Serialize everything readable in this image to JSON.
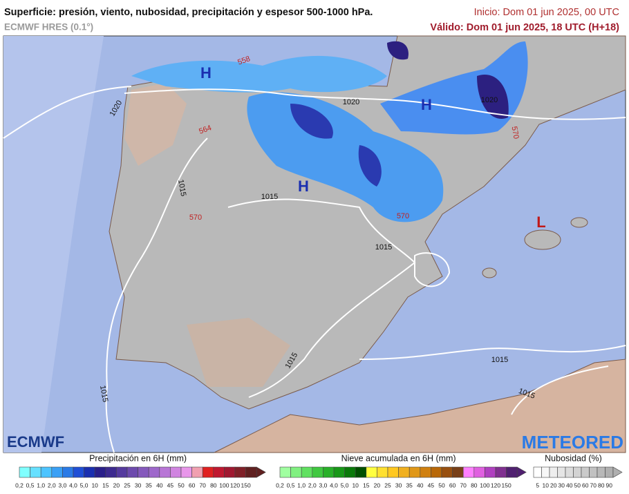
{
  "header": {
    "title": "Superficie: presión, viento, nubosidad, precipitación y espesor 500-1000 hPa.",
    "model": "ECMWF HRES (0.1°)",
    "init": "Inicio: Dom 01 jun 2025, 00 UTC",
    "valid": "Válido: Dom 01 jun 2025, 18 UTC (H+18)"
  },
  "map": {
    "pressure_centers": [
      "H",
      "H",
      "H",
      "L"
    ],
    "isobar_labels": [
      "1020",
      "1020",
      "1020",
      "1015",
      "1015",
      "1015",
      "1015",
      "1015",
      "1015",
      "1015"
    ],
    "thickness_labels": [
      "558",
      "564",
      "570",
      "570",
      "570"
    ]
  },
  "logos": {
    "left": "ECMWF",
    "right": "METEORED"
  },
  "legends": [
    {
      "title": "Precipitación en 6H (mm)",
      "labels": [
        "0,2",
        "0,5",
        "1,0",
        "2,0",
        "3,0",
        "4,0",
        "5,0",
        "10",
        "15",
        "20",
        "25",
        "30",
        "35",
        "40",
        "45",
        "50",
        "60",
        "70",
        "80",
        "100",
        "120",
        "150"
      ],
      "colors": [
        "#80ffff",
        "#66e0ff",
        "#4dc4ff",
        "#3aa0f5",
        "#2a7ae6",
        "#1f4fd6",
        "#1a2fb0",
        "#2a1f8a",
        "#3d2a8f",
        "#553a9e",
        "#6d4aad",
        "#8559bc",
        "#9e68cb",
        "#b876d6",
        "#d084e0",
        "#e896ea",
        "#f0a0b0",
        "#e02020",
        "#c01830",
        "#a01830",
        "#802028",
        "#602020"
      ]
    },
    {
      "title": "Nieve acumulada en 6H (mm)",
      "labels": [
        "0,2",
        "0,5",
        "1,0",
        "2,0",
        "3,0",
        "4,0",
        "5,0",
        "10",
        "15",
        "20",
        "25",
        "30",
        "35",
        "40",
        "45",
        "50",
        "60",
        "70",
        "80",
        "100",
        "120",
        "150"
      ],
      "colors": [
        "#a0ffa0",
        "#80f080",
        "#60e060",
        "#40c840",
        "#28b028",
        "#189818",
        "#0a7a0a",
        "#005000",
        "#ffff40",
        "#ffe030",
        "#ffc820",
        "#f0b020",
        "#e09818",
        "#d08010",
        "#b86808",
        "#985010",
        "#784018",
        "#ff80ff",
        "#e060e0",
        "#b040c0",
        "#803090",
        "#502070"
      ]
    },
    {
      "title": "Nubosidad (%)",
      "labels": [
        "5",
        "10",
        "20",
        "30",
        "40",
        "50",
        "60",
        "70",
        "80",
        "90"
      ],
      "colors": [
        "#ffffff",
        "#f7f7f7",
        "#eeeeee",
        "#e5e5e5",
        "#dcdcdc",
        "#d3d3d3",
        "#cacaca",
        "#c1c1c1",
        "#b8b8b8",
        "#afafaf"
      ]
    }
  ]
}
